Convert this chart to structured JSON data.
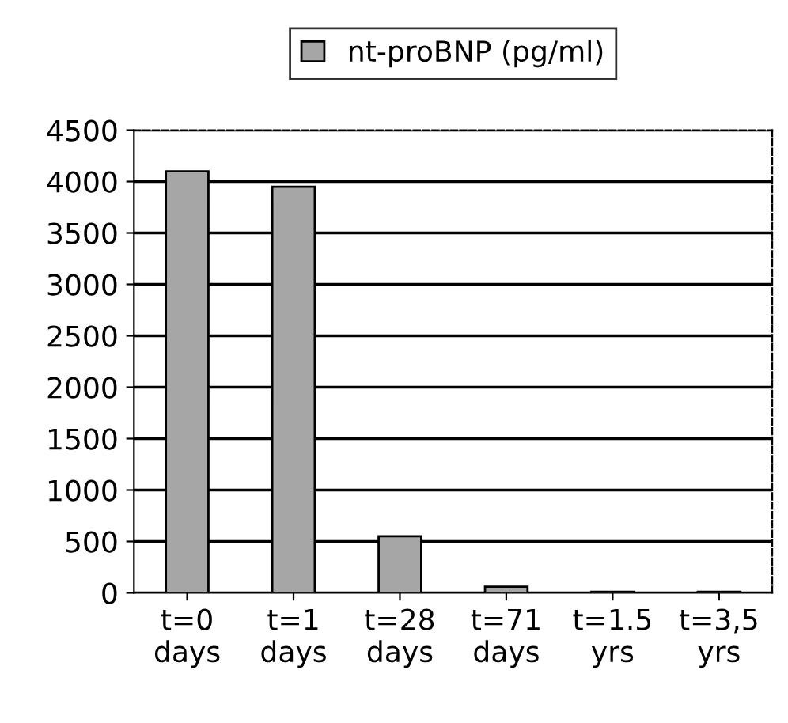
{
  "chart_data": {
    "type": "bar",
    "categories": [
      "t=0\ndays",
      "t=1\ndays",
      "t=28\ndays",
      "t=71\ndays",
      "t=1.5\nyrs",
      "t=3,5\nyrs"
    ],
    "series": [
      {
        "name": "nt-proBNP (pg/ml)",
        "color": "#a6a6a6",
        "values": [
          4100,
          3950,
          550,
          60,
          10,
          10
        ]
      }
    ],
    "ylim": [
      0,
      4500
    ],
    "yticks": [
      0,
      500,
      1000,
      1500,
      2000,
      2500,
      3000,
      3500,
      4000,
      4500
    ],
    "grid": "y",
    "legend": "top"
  }
}
